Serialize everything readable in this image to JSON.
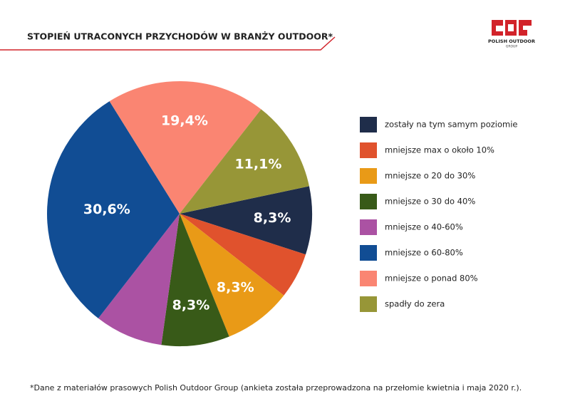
{
  "chart_data": {
    "type": "pie",
    "title": "STOPIEŃ UTRACONYCH PRZYCHODÓW W BRANŻY OUTDOOR*",
    "categories": [
      "zostały na tym samym poziomie",
      "mniejsze max o około 10%",
      "mniejsze o 20 do 30%",
      "mniejsze o 30 do 40%",
      "mniejsze o 40-60%",
      "mniejsze o 60-80%",
      "mniejsze o ponad 80%",
      "spadły do zera"
    ],
    "values": [
      8.3,
      5.6,
      8.3,
      8.3,
      8.3,
      30.6,
      19.4,
      11.1
    ],
    "value_labels": [
      "8,3%",
      null,
      "8,3%",
      "8,3%",
      null,
      "30,6%",
      "19,4%",
      "11,1%"
    ],
    "colors": [
      "#1f2d4a",
      "#e0522d",
      "#e99a17",
      "#385a18",
      "#ab52a3",
      "#114d94",
      "#fa8572",
      "#979637"
    ],
    "legend": "right",
    "footnote": "*Dane z materiałów prasowych Polish Outdoor Group (ankieta została przeprowadzona na przełomie kwietnia i maja 2020 r.)."
  },
  "logo": {
    "name": "POLISH OUTDOOR",
    "sub": "GROUP"
  }
}
